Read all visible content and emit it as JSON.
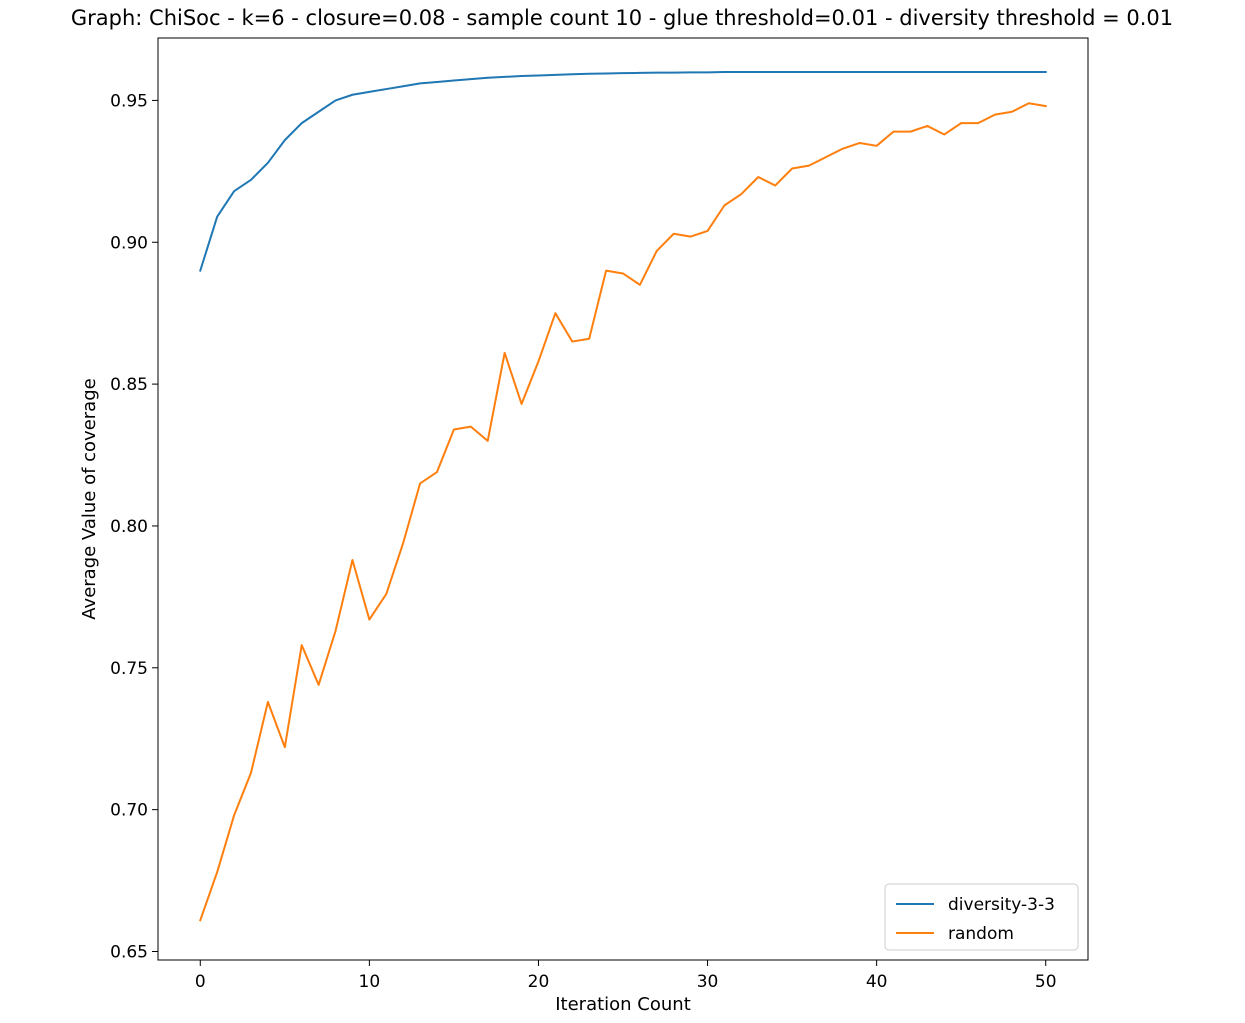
{
  "chart_data": {
    "type": "line",
    "title": "Graph: ChiSoc - k=6 - closure=0.08 - sample count 10 - glue threshold=0.01 - diversity threshold = 0.01",
    "xlabel": "Iteration Count",
    "ylabel": "Average Value of coverage",
    "xlim": [
      -2.5,
      52.5
    ],
    "ylim": [
      0.647,
      0.972
    ],
    "xticks": [
      0,
      10,
      20,
      30,
      40,
      50
    ],
    "yticks": [
      0.65,
      0.7,
      0.75,
      0.8,
      0.85,
      0.9,
      0.95
    ],
    "grid": false,
    "legend_position": "lower-right",
    "x": [
      0,
      1,
      2,
      3,
      4,
      5,
      6,
      7,
      8,
      9,
      10,
      11,
      12,
      13,
      14,
      15,
      16,
      17,
      18,
      19,
      20,
      21,
      22,
      23,
      24,
      25,
      26,
      27,
      28,
      29,
      30,
      31,
      32,
      33,
      34,
      35,
      36,
      37,
      38,
      39,
      40,
      41,
      42,
      43,
      44,
      45,
      46,
      47,
      48,
      49,
      50
    ],
    "series": [
      {
        "name": "diversity-3-3",
        "color": "#1f77b4",
        "values": [
          0.89,
          0.909,
          0.918,
          0.922,
          0.928,
          0.936,
          0.942,
          0.946,
          0.95,
          0.952,
          0.953,
          0.954,
          0.955,
          0.956,
          0.9565,
          0.957,
          0.9575,
          0.958,
          0.9583,
          0.9586,
          0.9588,
          0.959,
          0.9592,
          0.9594,
          0.9595,
          0.9596,
          0.9597,
          0.9598,
          0.9598,
          0.9599,
          0.9599,
          0.96,
          0.96,
          0.96,
          0.96,
          0.96,
          0.96,
          0.96,
          0.96,
          0.96,
          0.96,
          0.96,
          0.96,
          0.96,
          0.96,
          0.96,
          0.96,
          0.96,
          0.96,
          0.96,
          0.96
        ]
      },
      {
        "name": "random",
        "color": "#ff7f0e",
        "values": [
          0.661,
          0.678,
          0.698,
          0.713,
          0.738,
          0.722,
          0.758,
          0.744,
          0.763,
          0.788,
          0.767,
          0.776,
          0.794,
          0.815,
          0.819,
          0.834,
          0.835,
          0.83,
          0.861,
          0.843,
          0.858,
          0.875,
          0.865,
          0.866,
          0.89,
          0.889,
          0.885,
          0.897,
          0.903,
          0.902,
          0.904,
          0.913,
          0.917,
          0.923,
          0.92,
          0.926,
          0.927,
          0.93,
          0.933,
          0.935,
          0.934,
          0.939,
          0.939,
          0.941,
          0.938,
          0.942,
          0.942,
          0.945,
          0.946,
          0.949,
          0.948
        ]
      }
    ]
  }
}
